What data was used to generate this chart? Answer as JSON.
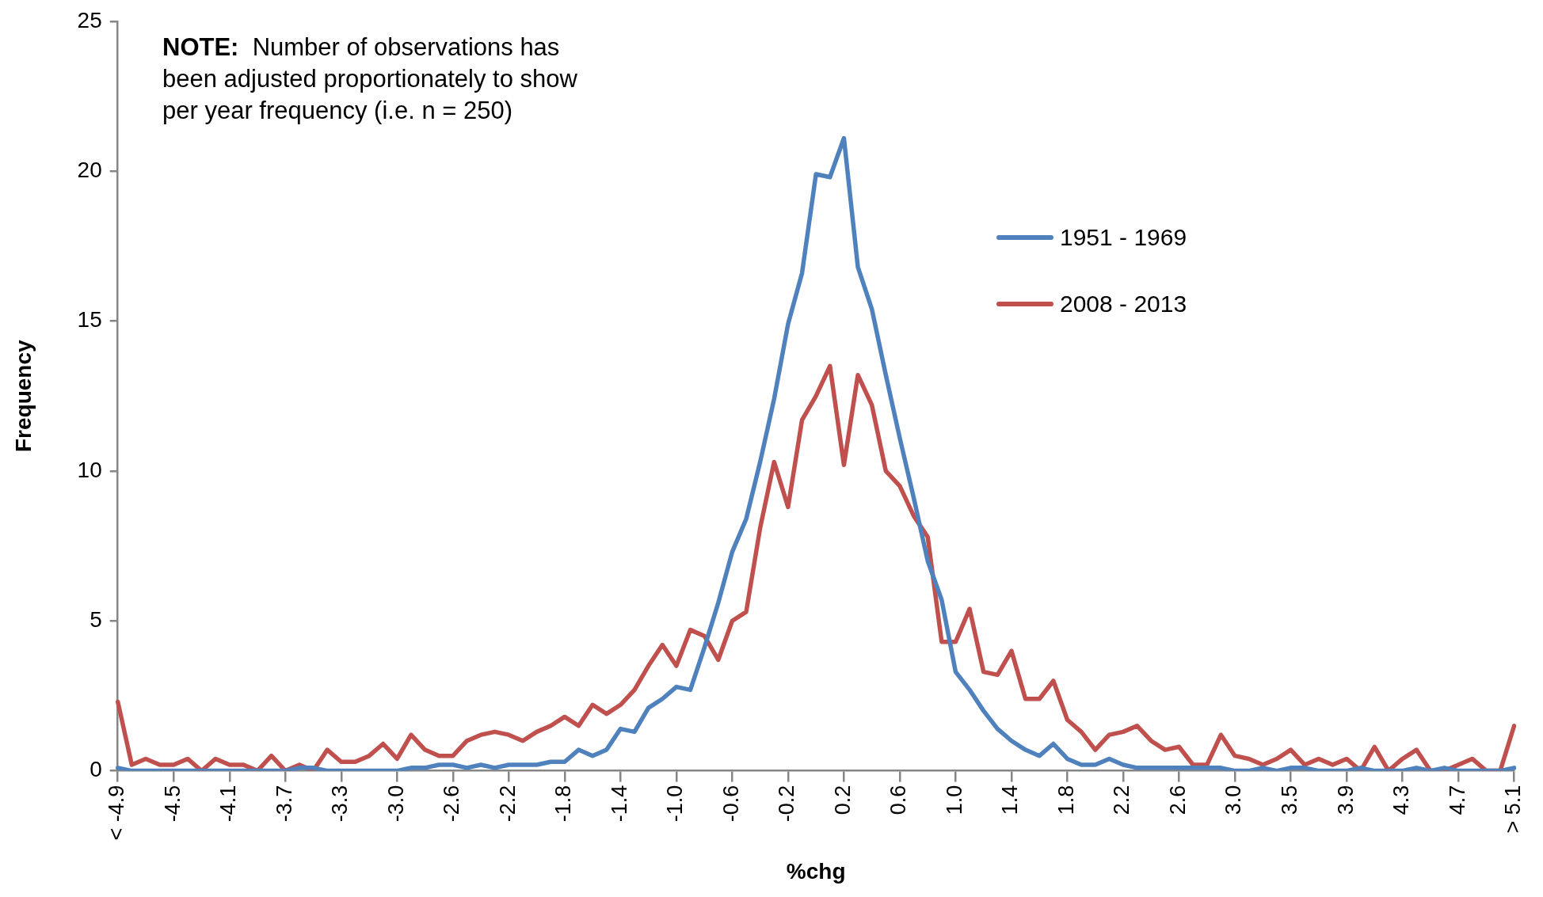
{
  "chart_data": {
    "type": "line",
    "xlabel": "%chg",
    "ylabel": "Frequency",
    "categories": [
      "< -4.9",
      null,
      null,
      null,
      "-4.5",
      null,
      null,
      null,
      "-4.1",
      null,
      null,
      null,
      "-3.7",
      null,
      null,
      null,
      "-3.3",
      null,
      null,
      null,
      "-3.0",
      null,
      null,
      null,
      "-2.6",
      null,
      null,
      null,
      "-2.2",
      null,
      null,
      null,
      "-1.8",
      null,
      null,
      null,
      "-1.4",
      null,
      null,
      null,
      "-1.0",
      null,
      null,
      null,
      "-0.6",
      null,
      null,
      null,
      "-0.2",
      null,
      null,
      null,
      "0.2",
      null,
      null,
      null,
      "0.6",
      null,
      null,
      null,
      "1.0",
      null,
      null,
      null,
      "1.4",
      null,
      null,
      null,
      "1.8",
      null,
      null,
      null,
      "2.2",
      null,
      null,
      null,
      "2.6",
      null,
      null,
      null,
      "3.0",
      null,
      null,
      null,
      "3.5",
      null,
      null,
      null,
      "3.9",
      null,
      null,
      null,
      "4.3",
      null,
      null,
      null,
      "4.7",
      null,
      null,
      null,
      "> 5.1"
    ],
    "series": [
      {
        "name": "1951 - 1969",
        "color": "#4f81bd",
        "values": [
          0.1,
          0,
          0,
          0,
          0,
          0,
          0,
          0,
          0,
          0,
          0,
          0,
          0,
          0.1,
          0.1,
          0,
          0,
          0,
          0,
          0,
          0,
          0.1,
          0.1,
          0.2,
          0.2,
          0.1,
          0.2,
          0.1,
          0.2,
          0.2,
          0.2,
          0.3,
          0.3,
          0.7,
          0.5,
          0.7,
          1.4,
          1.3,
          2.1,
          2.4,
          2.8,
          2.7,
          4.1,
          5.6,
          7.3,
          8.4,
          10.3,
          12.4,
          14.9,
          16.6,
          19.9,
          19.8,
          21.1,
          16.8,
          15.4,
          13.2,
          11.1,
          9.1,
          7.0,
          5.7,
          3.3,
          2.7,
          2.0,
          1.4,
          1.0,
          0.7,
          0.5,
          0.9,
          0.4,
          0.2,
          0.2,
          0.4,
          0.2,
          0.1,
          0.1,
          0.1,
          0.1,
          0.1,
          0.1,
          0.1,
          0,
          0,
          0.1,
          0,
          0.1,
          0.1,
          0,
          0,
          0,
          0.1,
          0,
          0,
          0,
          0.1,
          0,
          0.1,
          0,
          0,
          0,
          0,
          0.1
        ]
      },
      {
        "name": "2008 - 2013",
        "color": "#c0504d",
        "values": [
          2.3,
          0.2,
          0.4,
          0.2,
          0.2,
          0.4,
          0,
          0.4,
          0.2,
          0.2,
          0,
          0.5,
          0,
          0.2,
          0,
          0.7,
          0.3,
          0.3,
          0.5,
          0.9,
          0.4,
          1.2,
          0.7,
          0.5,
          0.5,
          1.0,
          1.2,
          1.3,
          1.2,
          1.0,
          1.3,
          1.5,
          1.8,
          1.5,
          2.2,
          1.9,
          2.2,
          2.7,
          3.5,
          4.2,
          3.5,
          4.7,
          4.5,
          3.7,
          5.0,
          5.3,
          8.1,
          10.3,
          8.8,
          11.7,
          12.5,
          13.5,
          10.2,
          13.2,
          12.2,
          10.0,
          9.5,
          8.5,
          7.8,
          4.3,
          4.3,
          5.4,
          3.3,
          3.2,
          4.0,
          2.4,
          2.4,
          3.0,
          1.7,
          1.3,
          0.7,
          1.2,
          1.3,
          1.5,
          1.0,
          0.7,
          0.8,
          0.2,
          0.2,
          1.2,
          0.5,
          0.4,
          0.2,
          0.4,
          0.7,
          0.2,
          0.4,
          0.2,
          0.4,
          0,
          0.8,
          0,
          0.4,
          0.7,
          0,
          0,
          0.2,
          0.4,
          0,
          0,
          1.5
        ]
      }
    ],
    "ylim": [
      0,
      25
    ],
    "yticks": [
      0,
      5,
      10,
      15,
      20,
      25
    ],
    "grid": false,
    "legend": "top right",
    "marker": "none",
    "line_style": "solid",
    "annotations": [
      "NOTE:  Number of observations has been adjusted proportionately to show per year frequency (i.e. n  = 250)"
    ]
  }
}
